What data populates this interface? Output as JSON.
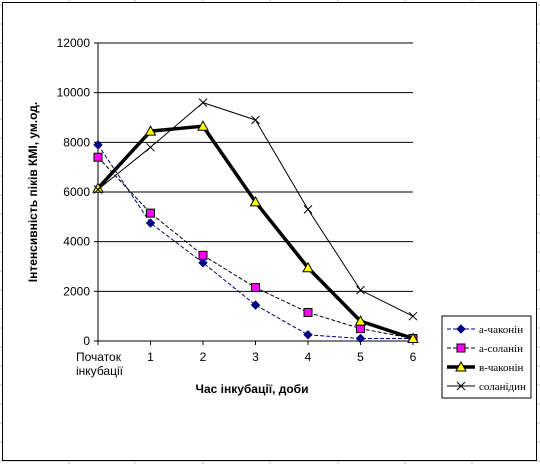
{
  "sheet_fragments": {
    "rows": [
      "а",
      "а",
      "в",
      "с"
    ],
    "header": [
      "Почат",
      "1",
      "2",
      "3",
      "4",
      "5",
      "6"
    ],
    "right_edge": [
      "0",
      "0",
      "0",
      "0"
    ]
  },
  "chart_data": {
    "type": "line",
    "title": "",
    "xlabel": "Час інкубації, доби",
    "ylabel": "Інтенсивність піків КМІ, ум.од.",
    "categories": [
      "Початок інкубації",
      "1",
      "2",
      "3",
      "4",
      "5",
      "6"
    ],
    "category_lines": [
      [
        "Початок",
        "інкубації"
      ],
      [
        "1"
      ],
      [
        "2"
      ],
      [
        "3"
      ],
      [
        "4"
      ],
      [
        "5"
      ],
      [
        "6"
      ]
    ],
    "ylim": [
      0,
      12000
    ],
    "yticks": [
      0,
      2000,
      4000,
      6000,
      8000,
      10000,
      12000
    ],
    "grid": "horizontal",
    "legend_position": "right",
    "series": [
      {
        "name": "а-чаконін",
        "values": [
          7900,
          4750,
          3150,
          1450,
          250,
          100,
          100
        ],
        "color": "#000080",
        "marker": "diamond",
        "marker_color": "#000080",
        "line_width": 1,
        "dash": "4,2"
      },
      {
        "name": "а-соланін",
        "values": [
          7400,
          5150,
          3450,
          2150,
          1150,
          500,
          100
        ],
        "color": "#000000",
        "marker": "square",
        "marker_color": "#ff00ff",
        "line_width": 1,
        "dash": "4,2"
      },
      {
        "name": "в-чаконін",
        "values": [
          6150,
          8450,
          8650,
          5600,
          2950,
          800,
          100
        ],
        "color": "#000000",
        "marker": "triangle",
        "marker_color": "#ffff00",
        "line_width": 3.5,
        "dash": ""
      },
      {
        "name": "соланідин",
        "values": [
          6100,
          7800,
          9600,
          8900,
          5300,
          2050,
          1000
        ],
        "color": "#000000",
        "marker": "x",
        "marker_color": "#000000",
        "line_width": 1,
        "dash": ""
      }
    ]
  }
}
